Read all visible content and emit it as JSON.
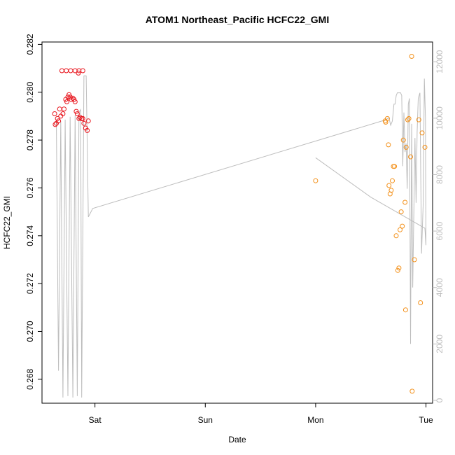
{
  "chart_data": {
    "type": "scatter",
    "title": "ATOM1 Northeast_Pacific HCFC22_GMI",
    "xlabel": "Date",
    "ylabel": "HCFC22_GMI",
    "x_unit": "days (0 = Sat 00:00)",
    "xlim": [
      -0.48,
      3.06
    ],
    "ylim": [
      0.267,
      0.2821
    ],
    "y_ticks": [
      0.268,
      0.27,
      0.272,
      0.274,
      0.276,
      0.278,
      0.28,
      0.282
    ],
    "x_ticks": [
      {
        "value": 0,
        "label": "Sat"
      },
      {
        "value": 1,
        "label": "Sun"
      },
      {
        "value": 2,
        "label": "Mon"
      },
      {
        "value": 3,
        "label": "Tue"
      }
    ],
    "y2lim": [
      -100,
      12700
    ],
    "y2_ticks": [
      0,
      2000,
      4000,
      6000,
      8000,
      10000,
      12000
    ],
    "colors": {
      "series1": "#e8141c",
      "series2": "#f39019",
      "line": "#bdbdbd",
      "axis": "#000000"
    },
    "series": [
      {
        "color": "#e8141c",
        "points": [
          [
            -0.365,
            0.2791
          ],
          [
            -0.36,
            0.27865
          ],
          [
            -0.35,
            0.2787
          ],
          [
            -0.34,
            0.2789
          ],
          [
            -0.33,
            0.2788
          ],
          [
            -0.32,
            0.2793
          ],
          [
            -0.31,
            0.279
          ],
          [
            -0.29,
            0.2791
          ],
          [
            -0.28,
            0.2793
          ],
          [
            -0.265,
            0.2797
          ],
          [
            -0.255,
            0.2796
          ],
          [
            -0.245,
            0.2798
          ],
          [
            -0.235,
            0.2799
          ],
          [
            -0.225,
            0.2798
          ],
          [
            -0.215,
            0.2797
          ],
          [
            -0.2,
            0.27975
          ],
          [
            -0.19,
            0.2797
          ],
          [
            -0.18,
            0.2796
          ],
          [
            -0.17,
            0.2792
          ],
          [
            -0.16,
            0.2791
          ],
          [
            -0.145,
            0.2789
          ],
          [
            -0.135,
            0.27895
          ],
          [
            -0.12,
            0.2789
          ],
          [
            -0.11,
            0.2789
          ],
          [
            -0.1,
            0.2787
          ],
          [
            -0.085,
            0.2785
          ],
          [
            -0.07,
            0.2784
          ],
          [
            -0.06,
            0.2788
          ],
          [
            -0.3,
            0.2809
          ],
          [
            -0.26,
            0.2809
          ],
          [
            -0.22,
            0.2809
          ],
          [
            -0.18,
            0.2809
          ],
          [
            -0.145,
            0.2809
          ],
          [
            -0.15,
            0.2808
          ],
          [
            -0.11,
            0.2809
          ]
        ]
      },
      {
        "color": "#f39019",
        "points": [
          [
            2.0,
            0.2763
          ],
          [
            2.63,
            0.2788
          ],
          [
            2.635,
            0.27875
          ],
          [
            2.65,
            0.2789
          ],
          [
            2.66,
            0.2778
          ],
          [
            2.665,
            0.2761
          ],
          [
            2.675,
            0.27575
          ],
          [
            2.685,
            0.2759
          ],
          [
            2.695,
            0.2763
          ],
          [
            2.705,
            0.2769
          ],
          [
            2.715,
            0.2769
          ],
          [
            2.73,
            0.274
          ],
          [
            2.745,
            0.27255
          ],
          [
            2.755,
            0.27265
          ],
          [
            2.765,
            0.27425
          ],
          [
            2.775,
            0.275
          ],
          [
            2.785,
            0.2744
          ],
          [
            2.795,
            0.278
          ],
          [
            2.81,
            0.2754
          ],
          [
            2.815,
            0.2709
          ],
          [
            2.82,
            0.2777
          ],
          [
            2.835,
            0.27885
          ],
          [
            2.845,
            0.2789
          ],
          [
            2.86,
            0.2773
          ],
          [
            2.87,
            0.2815
          ],
          [
            2.875,
            0.2675
          ],
          [
            2.895,
            0.273
          ],
          [
            2.935,
            0.27885
          ],
          [
            2.95,
            0.2712
          ],
          [
            2.965,
            0.2783
          ],
          [
            2.99,
            0.2777
          ]
        ]
      }
    ],
    "secondary_line": [
      [
        -0.35,
        9900
      ],
      [
        -0.33,
        1050
      ],
      [
        -0.31,
        9900
      ],
      [
        -0.29,
        100
      ],
      [
        -0.27,
        9950
      ],
      [
        -0.245,
        150
      ],
      [
        -0.225,
        10050
      ],
      [
        -0.2,
        100
      ],
      [
        -0.18,
        10100
      ],
      [
        -0.16,
        150
      ],
      [
        -0.145,
        10200
      ],
      [
        -0.13,
        10300
      ],
      [
        -0.12,
        100
      ],
      [
        -0.1,
        11500
      ],
      [
        -0.08,
        11500
      ],
      [
        -0.06,
        6500
      ],
      [
        -0.02,
        6800
      ],
      [
        2.6,
        9900
      ],
      [
        2.64,
        9950
      ],
      [
        2.655,
        10000
      ],
      [
        2.665,
        10000
      ],
      [
        2.68,
        9750
      ],
      [
        2.695,
        9900
      ],
      [
        2.71,
        10500
      ],
      [
        2.72,
        10500
      ],
      [
        2.73,
        10800
      ],
      [
        2.74,
        10900
      ],
      [
        2.755,
        10900
      ],
      [
        2.77,
        10900
      ],
      [
        2.78,
        10800
      ],
      [
        2.79,
        8300
      ],
      [
        2.8,
        10200
      ],
      [
        2.81,
        8800
      ],
      [
        2.82,
        9100
      ],
      [
        2.83,
        7500
      ],
      [
        2.84,
        10500
      ],
      [
        2.85,
        10700
      ],
      [
        2.86,
        2000
      ],
      [
        2.87,
        9800
      ],
      [
        2.88,
        4000
      ],
      [
        2.9,
        9300
      ],
      [
        2.91,
        7000
      ],
      [
        2.92,
        9500
      ],
      [
        2.93,
        10700
      ],
      [
        2.945,
        10900
      ],
      [
        2.96,
        5200
      ],
      [
        2.975,
        7000
      ],
      [
        2.985,
        11400
      ],
      [
        2.995,
        10000
      ],
      [
        3.0,
        5500
      ],
      [
        2.99,
        6100
      ],
      [
        2.5,
        7200
      ],
      [
        2.0,
        8600
      ]
    ]
  }
}
